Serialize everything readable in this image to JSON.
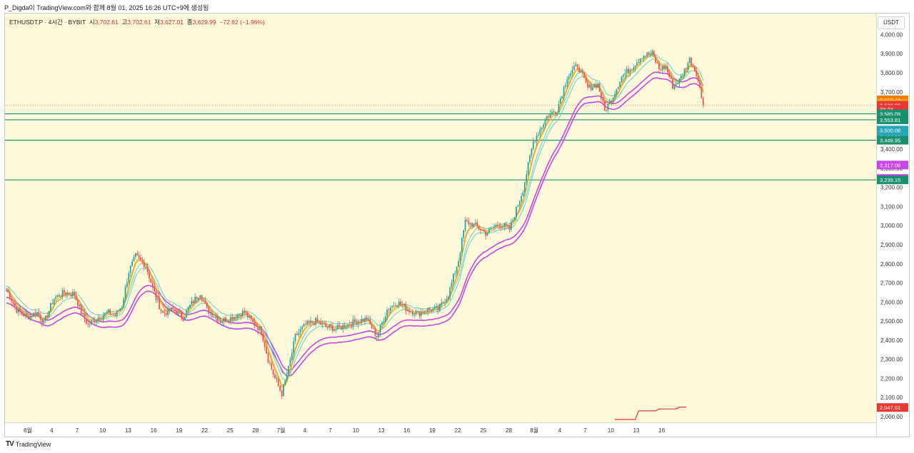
{
  "caption": "P_Digda이 TradingView.com와 함께 8월 01, 2025 16:26 UTC+9에 생성됨",
  "header": {
    "symbol": "ETHUSDT.P · 4시간 · BYBIT",
    "open_label": "시",
    "open": "3,702.61",
    "high_label": "고",
    "high": "3,702.61",
    "low_label": "저",
    "low": "3,627.01",
    "close_label": "종",
    "close": "3,629.99",
    "change": "−72.62 (−1.96%)"
  },
  "currency": "USDT",
  "footer": {
    "logo_mark": "TV",
    "logo_text": "TradingView"
  },
  "colors": {
    "up": "#26a69a",
    "down": "#ef5350",
    "orange": "#f5a623",
    "cyan": "#4dd0c8",
    "magenta": "#c945e8",
    "hline": "#1a8f6e",
    "red_step": "#e53935"
  },
  "chart_data": {
    "type": "candlestick",
    "ylim": [
      1970,
      4110
    ],
    "y_ticks": [
      "2,000.00",
      "2,100.00",
      "2,200.00",
      "2,300.00",
      "2,400.00",
      "2,500.00",
      "2,600.00",
      "2,700.00",
      "2,800.00",
      "2,900.00",
      "3,000.00",
      "3,100.00",
      "3,200.00",
      "3,300.00",
      "3,400.00",
      "3,500.00",
      "3,600.00",
      "3,700.00",
      "3,800.00",
      "3,900.00",
      "4,000.00"
    ],
    "x_ticks": [
      "6월",
      "4",
      "7",
      "10",
      "13",
      "16",
      "19",
      "22",
      "25",
      "28",
      "7월",
      "4",
      "7",
      "10",
      "13",
      "16",
      "19",
      "22",
      "25",
      "28",
      "8월",
      "4",
      "7",
      "10",
      "13",
      "16"
    ],
    "x_tick_index": [
      0,
      14,
      29,
      44,
      59,
      74,
      89,
      104,
      119,
      134,
      149,
      163,
      178,
      193,
      208,
      223,
      238,
      253,
      268,
      283,
      298,
      313,
      328,
      343,
      358,
      373
    ],
    "price_close_level": 3629.99,
    "horizontal_levels": [
      3585.09,
      3553.81,
      3446.95,
      3239.15
    ],
    "price_labels": [
      {
        "text": "3,658.48",
        "value": 3658.48,
        "color": "#f57c00"
      },
      {
        "text": "3,637.93",
        "value": 3637.93,
        "color": "#f5a623"
      },
      {
        "text": "3,629.99",
        "value": 3629.99,
        "color": "#e53935"
      },
      {
        "text": "33:23",
        "value": 3609,
        "color": "#e53935"
      },
      {
        "text": "3,585.09",
        "value": 3585.09,
        "color": "#1a8f6e"
      },
      {
        "text": "3,553.81",
        "value": 3553.81,
        "color": "#1a8f6e"
      },
      {
        "text": "3,500.08",
        "value": 3500.08,
        "color": "#26a6b8"
      },
      {
        "text": "3,464.00",
        "value": 3464.0,
        "color": "#26a6b8"
      },
      {
        "text": "3,446.95",
        "value": 3446.95,
        "color": "#1a8f6e"
      },
      {
        "text": "3,317.06",
        "value": 3317.06,
        "color": "#c945e8"
      },
      {
        "text": "3,246.61",
        "value": 3246.61,
        "color": "#c945e8"
      },
      {
        "text": "3,239.15",
        "value": 3239.15,
        "color": "#1a8f6e"
      },
      {
        "text": "2,047.61",
        "value": 2047.61,
        "color": "#e53935"
      }
    ],
    "anchors": [
      [
        0,
        2665
      ],
      [
        6,
        2560
      ],
      [
        12,
        2520
      ],
      [
        18,
        2545
      ],
      [
        22,
        2490
      ],
      [
        28,
        2620
      ],
      [
        34,
        2650
      ],
      [
        40,
        2640
      ],
      [
        44,
        2545
      ],
      [
        48,
        2480
      ],
      [
        54,
        2520
      ],
      [
        60,
        2545
      ],
      [
        64,
        2530
      ],
      [
        68,
        2580
      ],
      [
        72,
        2760
      ],
      [
        76,
        2840
      ],
      [
        82,
        2790
      ],
      [
        88,
        2620
      ],
      [
        92,
        2540
      ],
      [
        98,
        2560
      ],
      [
        104,
        2520
      ],
      [
        108,
        2580
      ],
      [
        114,
        2650
      ],
      [
        118,
        2560
      ],
      [
        126,
        2500
      ],
      [
        134,
        2525
      ],
      [
        140,
        2550
      ],
      [
        144,
        2500
      ],
      [
        150,
        2450
      ],
      [
        154,
        2300
      ],
      [
        158,
        2200
      ],
      [
        162,
        2120
      ],
      [
        166,
        2250
      ],
      [
        170,
        2420
      ],
      [
        176,
        2480
      ],
      [
        182,
        2500
      ],
      [
        188,
        2470
      ],
      [
        194,
        2460
      ],
      [
        200,
        2480
      ],
      [
        206,
        2500
      ],
      [
        212,
        2510
      ],
      [
        218,
        2420
      ],
      [
        224,
        2560
      ],
      [
        230,
        2600
      ],
      [
        236,
        2560
      ],
      [
        242,
        2540
      ],
      [
        248,
        2560
      ],
      [
        254,
        2560
      ],
      [
        260,
        2640
      ],
      [
        266,
        2820
      ],
      [
        270,
        3020
      ],
      [
        276,
        3000
      ],
      [
        282,
        2960
      ],
      [
        290,
        3010
      ],
      [
        296,
        2980
      ],
      [
        304,
        3190
      ],
      [
        310,
        3440
      ],
      [
        318,
        3570
      ],
      [
        324,
        3610
      ],
      [
        330,
        3780
      ],
      [
        336,
        3840
      ],
      [
        342,
        3720
      ],
      [
        348,
        3740
      ],
      [
        352,
        3600
      ],
      [
        356,
        3660
      ],
      [
        362,
        3780
      ],
      [
        368,
        3830
      ],
      [
        374,
        3890
      ],
      [
        380,
        3900
      ],
      [
        384,
        3820
      ],
      [
        388,
        3830
      ],
      [
        392,
        3730
      ],
      [
        396,
        3760
      ],
      [
        402,
        3870
      ],
      [
        406,
        3800
      ],
      [
        410,
        3630
      ]
    ],
    "indicators": {
      "orange_ema": {
        "lag": 5,
        "offsets": [
          -5,
          5
        ]
      },
      "cyan_ema": {
        "lag": 10,
        "offsets": [
          -10,
          18
        ]
      },
      "magenta_ema": {
        "lag": 22,
        "offsets": [
          -40,
          -70
        ]
      }
    },
    "red_step": [
      [
        358,
        1985
      ],
      [
        370,
        1985
      ],
      [
        372,
        2030
      ],
      [
        382,
        2030
      ],
      [
        384,
        2040
      ],
      [
        394,
        2040
      ],
      [
        396,
        2050
      ],
      [
        400,
        2050
      ]
    ]
  }
}
